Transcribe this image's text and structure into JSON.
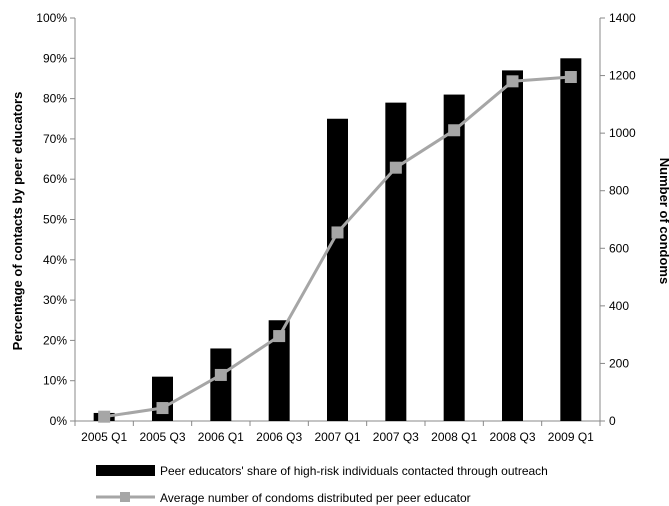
{
  "chart_data": {
    "type": "bar",
    "categories": [
      "2005 Q1",
      "2005 Q3",
      "2006 Q1",
      "2006 Q3",
      "2007 Q1",
      "2007 Q3",
      "2008 Q1",
      "2008 Q3",
      "2009 Q1"
    ],
    "series": [
      {
        "name": "Peer educators' share of high-risk individuals contacted through outreach",
        "type": "bar",
        "axis": "left",
        "color": "#000000",
        "values": [
          2,
          11,
          18,
          25,
          75,
          79,
          81,
          87,
          90
        ]
      },
      {
        "name": "Average number of condoms distributed per peer educator",
        "type": "line",
        "axis": "right",
        "color": "#a6a6a6",
        "values": [
          15,
          45,
          160,
          295,
          655,
          880,
          1010,
          1180,
          1195
        ]
      }
    ],
    "ylabel": "Percentage of contacts by peer educators",
    "y2label": "Number of condoms",
    "ylim": [
      0,
      100
    ],
    "y2lim": [
      0,
      1400
    ],
    "yticks": [
      "0%",
      "10%",
      "20%",
      "30%",
      "40%",
      "50%",
      "60%",
      "70%",
      "80%",
      "90%",
      "100%"
    ],
    "y2ticks": [
      "0",
      "200",
      "400",
      "600",
      "800",
      "1000",
      "1200",
      "1400"
    ],
    "grid": false,
    "legend_position": "bottom"
  }
}
